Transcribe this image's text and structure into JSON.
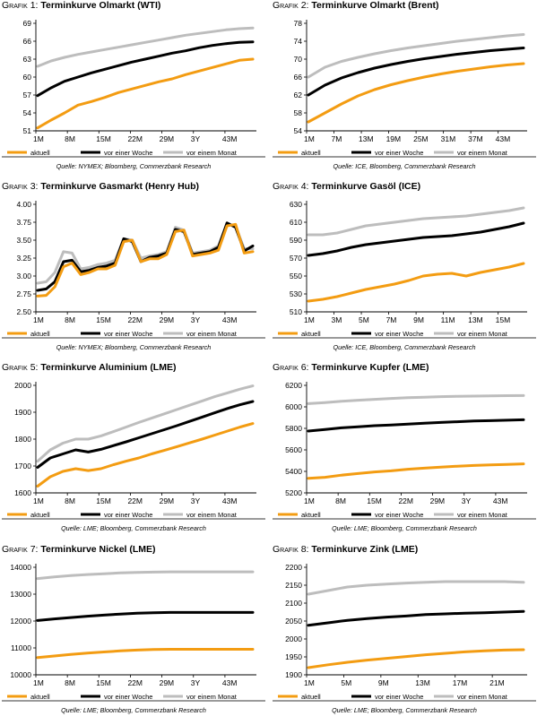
{
  "legend_labels": [
    "aktuell",
    "vor einer Woche",
    "vor einem Monat"
  ],
  "colors": {
    "aktuell": "#f39c12",
    "woche": "#000000",
    "monat": "#bdbdbd",
    "rule": "#9a9a9a"
  },
  "charts": [
    {
      "prefix": "Grafik 1:",
      "title": "Terminkurve Olmarkt (WTI)",
      "source": "Quelle: NYMEX; Bloomberg, Commerzbank Research",
      "chart_data": {
        "type": "line",
        "x_ticks": [
          "1M",
          "8M",
          "15M",
          "22M",
          "29M",
          "3Y",
          "43M"
        ],
        "y_ticks": [
          "51",
          "54",
          "57",
          "60",
          "63",
          "66",
          "69"
        ],
        "ylim": [
          51,
          69
        ],
        "series": [
          {
            "name": "aktuell",
            "values": [
              51.5,
              52.8,
              54,
              55.3,
              55.9,
              56.6,
              57.4,
              58,
              58.6,
              59.2,
              59.7,
              60.4,
              61,
              61.6,
              62.2,
              62.8,
              63
            ]
          },
          {
            "name": "vor einer Woche",
            "values": [
              56.9,
              58.2,
              59.3,
              60,
              60.7,
              61.3,
              61.9,
              62.5,
              63,
              63.5,
              64,
              64.4,
              64.9,
              65.3,
              65.6,
              65.8,
              65.9
            ]
          },
          {
            "name": "vor einem Monat",
            "values": [
              61.8,
              62.7,
              63.3,
              63.8,
              64.2,
              64.6,
              65,
              65.4,
              65.8,
              66.2,
              66.6,
              67,
              67.3,
              67.6,
              67.9,
              68.1,
              68.2
            ]
          }
        ]
      }
    },
    {
      "prefix": "Grafik 2:",
      "title": "Terminkurve Olmarkt (Brent)",
      "source": "Quelle: ICE, Bloomberg, Commerzbank Research",
      "chart_data": {
        "type": "line",
        "x_ticks": [
          "1M",
          "7M",
          "13M",
          "19M",
          "25M",
          "31M",
          "37M",
          "43M"
        ],
        "y_ticks": [
          "54",
          "58",
          "62",
          "66",
          "70",
          "74",
          "78"
        ],
        "ylim": [
          54,
          78
        ],
        "series": [
          {
            "name": "aktuell",
            "values": [
              56,
              58,
              60,
              61.8,
              63.2,
              64.3,
              65.2,
              66,
              66.7,
              67.3,
              67.8,
              68.3,
              68.7,
              69
            ]
          },
          {
            "name": "vor einer Woche",
            "values": [
              62,
              64.2,
              65.8,
              67,
              68,
              68.8,
              69.5,
              70.1,
              70.6,
              71.1,
              71.5,
              71.9,
              72.2,
              72.5
            ]
          },
          {
            "name": "vor einem Monat",
            "values": [
              66,
              68.2,
              69.5,
              70.4,
              71.2,
              71.9,
              72.5,
              73,
              73.5,
              74,
              74.4,
              74.8,
              75.2,
              75.5
            ]
          }
        ]
      }
    },
    {
      "prefix": "Grafik 3:",
      "title": "Terminkurve Gasmarkt (Henry Hub)",
      "source": "Quelle: NYMEX; Bloomberg, Commerzbank Research",
      "chart_data": {
        "type": "line",
        "x_ticks": [
          "1M",
          "8M",
          "15M",
          "22M",
          "29M",
          "3Y",
          "43M"
        ],
        "y_ticks": [
          "2.50",
          "2.75",
          "3.00",
          "3.25",
          "3.50",
          "3.75",
          "4.00"
        ],
        "ylim": [
          2.5,
          4.0
        ],
        "series": [
          {
            "name": "aktuell",
            "values": [
              2.72,
              2.73,
              2.85,
              3.13,
              3.18,
              3.02,
              3.05,
              3.1,
              3.1,
              3.15,
              3.48,
              3.5,
              3.2,
              3.24,
              3.24,
              3.3,
              3.62,
              3.64,
              3.28,
              3.3,
              3.32,
              3.36,
              3.7,
              3.72,
              3.32,
              3.34
            ]
          },
          {
            "name": "vor einer Woche",
            "values": [
              2.8,
              2.82,
              2.92,
              3.2,
              3.22,
              3.06,
              3.08,
              3.12,
              3.14,
              3.18,
              3.52,
              3.48,
              3.2,
              3.26,
              3.28,
              3.32,
              3.65,
              3.62,
              3.3,
              3.32,
              3.34,
              3.4,
              3.74,
              3.68,
              3.35,
              3.42
            ]
          },
          {
            "name": "vor einem Monat",
            "values": [
              2.9,
              2.92,
              3.05,
              3.34,
              3.32,
              3.1,
              3.12,
              3.16,
              3.18,
              3.22,
              3.52,
              3.5,
              3.25,
              3.28,
              3.3,
              3.34,
              3.68,
              3.64,
              3.32,
              3.34,
              3.36,
              3.42,
              3.72,
              3.7,
              3.38,
              3.38
            ]
          }
        ]
      }
    },
    {
      "prefix": "Grafik 4:",
      "title": "Terminkurve Gasöl (ICE)",
      "source": "Quelle: ICE, Bloomberg, Commerzbank Research",
      "chart_data": {
        "type": "line",
        "x_ticks": [
          "1M",
          "3M",
          "5M",
          "7M",
          "9M",
          "11M",
          "13M",
          "15M"
        ],
        "y_ticks": [
          "510",
          "530",
          "550",
          "570",
          "590",
          "610",
          "630"
        ],
        "ylim": [
          510,
          630
        ],
        "series": [
          {
            "name": "aktuell",
            "values": [
              522,
              524,
              527,
              531,
              535,
              538,
              541,
              545,
              550,
              552,
              553,
              550,
              554,
              557,
              560,
              564
            ]
          },
          {
            "name": "vor einer Woche",
            "values": [
              573,
              575,
              578,
              582,
              585,
              587,
              589,
              591,
              593,
              594,
              595,
              597,
              599,
              602,
              605,
              609
            ]
          },
          {
            "name": "vor einem Monat",
            "values": [
              596,
              596,
              598,
              602,
              606,
              608,
              610,
              612,
              614,
              615,
              616,
              617,
              619,
              621,
              623,
              626
            ]
          }
        ]
      }
    },
    {
      "prefix": "Grafik 5:",
      "title": "Terminkurve Aluminium (LME)",
      "source": "Quelle: LME; Bloomberg, Commerzbank Research",
      "chart_data": {
        "type": "line",
        "x_ticks": [
          "1M",
          "8M",
          "15M",
          "22M",
          "29M",
          "3Y",
          "43M"
        ],
        "y_ticks": [
          "1600",
          "1700",
          "1800",
          "1900",
          "2000"
        ],
        "ylim": [
          1600,
          2000
        ],
        "series": [
          {
            "name": "aktuell",
            "values": [
              1625,
              1660,
              1680,
              1690,
              1683,
              1690,
              1705,
              1718,
              1730,
              1745,
              1758,
              1772,
              1786,
              1800,
              1815,
              1830,
              1845,
              1858
            ]
          },
          {
            "name": "vor einer Woche",
            "values": [
              1695,
              1730,
              1745,
              1760,
              1752,
              1762,
              1776,
              1790,
              1805,
              1820,
              1835,
              1850,
              1866,
              1882,
              1898,
              1914,
              1928,
              1940
            ]
          },
          {
            "name": "vor einem Monat",
            "values": [
              1718,
              1760,
              1785,
              1800,
              1800,
              1812,
              1828,
              1845,
              1862,
              1878,
              1894,
              1910,
              1926,
              1942,
              1958,
              1972,
              1986,
              1998
            ]
          }
        ]
      }
    },
    {
      "prefix": "Grafik 6:",
      "title": "Terminkurve Kupfer (LME)",
      "source": "Quelle: LME; Bloomberg, Commerzbank Research",
      "chart_data": {
        "type": "line",
        "x_ticks": [
          "1M",
          "8M",
          "15M",
          "22M",
          "29M",
          "3Y",
          "43M"
        ],
        "y_ticks": [
          "5200",
          "5400",
          "5600",
          "5800",
          "6000",
          "6200"
        ],
        "ylim": [
          5200,
          6200
        ],
        "series": [
          {
            "name": "aktuell",
            "values": [
              5335,
              5345,
              5365,
              5380,
              5395,
              5405,
              5420,
              5430,
              5440,
              5448,
              5455,
              5460,
              5465,
              5470
            ]
          },
          {
            "name": "vor einer Woche",
            "values": [
              5775,
              5790,
              5805,
              5815,
              5825,
              5832,
              5840,
              5848,
              5855,
              5862,
              5868,
              5872,
              5876,
              5880
            ]
          },
          {
            "name": "vor einem Monat",
            "values": [
              6030,
              6040,
              6052,
              6062,
              6070,
              6078,
              6085,
              6090,
              6095,
              6098,
              6100,
              6102,
              6104,
              6105
            ]
          }
        ]
      }
    },
    {
      "prefix": "Grafik 7:",
      "title": "Terminkurve Nickel (LME)",
      "source": "Quelle: LME; Bloomberg, Commerzbank Research",
      "chart_data": {
        "type": "line",
        "x_ticks": [
          "1M",
          "8M",
          "15M",
          "22M",
          "29M",
          "3Y",
          "43M"
        ],
        "y_ticks": [
          "10000",
          "11000",
          "12000",
          "13000",
          "14000"
        ],
        "ylim": [
          10000,
          14000
        ],
        "series": [
          {
            "name": "aktuell",
            "values": [
              10640,
              10700,
              10760,
              10810,
              10850,
              10890,
              10920,
              10940,
              10950,
              10950,
              10950,
              10950,
              10950,
              10950
            ]
          },
          {
            "name": "vor einer Woche",
            "values": [
              12020,
              12080,
              12130,
              12180,
              12220,
              12260,
              12290,
              12310,
              12320,
              12320,
              12320,
              12320,
              12320,
              12320
            ]
          },
          {
            "name": "vor einem Monat",
            "values": [
              13580,
              13640,
              13690,
              13730,
              13760,
              13790,
              13810,
              13820,
              13830,
              13830,
              13830,
              13830,
              13830,
              13830
            ]
          }
        ]
      }
    },
    {
      "prefix": "Grafik 8:",
      "title": "Terminkurve Zink (LME)",
      "source": "Quelle: LME; Bloomberg, Commerzbank Research",
      "chart_data": {
        "type": "line",
        "x_ticks": [
          "1M",
          "5M",
          "9M",
          "13M",
          "17M",
          "21M"
        ],
        "y_ticks": [
          "1900",
          "1950",
          "2000",
          "2050",
          "2100",
          "2150",
          "2200"
        ],
        "ylim": [
          1900,
          2200
        ],
        "series": [
          {
            "name": "aktuell",
            "values": [
              1920,
              1928,
              1935,
              1941,
              1946,
              1951,
              1956,
              1960,
              1964,
              1967,
              1969,
              1970
            ]
          },
          {
            "name": "vor einer Woche",
            "values": [
              2038,
              2045,
              2052,
              2057,
              2061,
              2064,
              2068,
              2070,
              2072,
              2073,
              2075,
              2077
            ]
          },
          {
            "name": "vor einem Monat",
            "values": [
              2125,
              2135,
              2145,
              2150,
              2153,
              2156,
              2158,
              2160,
              2160,
              2160,
              2160,
              2158
            ]
          }
        ]
      }
    }
  ]
}
